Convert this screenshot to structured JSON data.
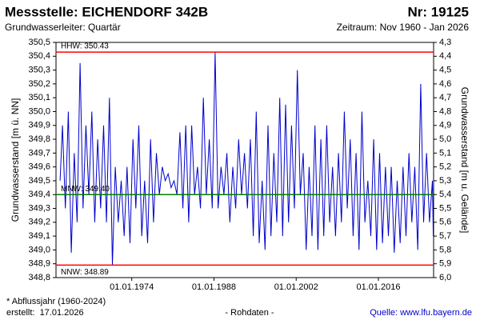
{
  "chart_data": {
    "type": "line",
    "title": "Messstelle: EICHENDORF 342B",
    "number": "Nr: 19125",
    "subtitle": "Grundwasserleiter: Quartär",
    "period": "Zeitraum: Nov 1960 - Jan 2026",
    "y_label": "Grundwasserstand [m ü. NN]",
    "y2_label": "Grundwasserstand [m u. Gelände]",
    "note": "* Abflussjahr (1960-2024)",
    "created": "erstellt:  17.01.2026",
    "data_status": "- Rohdaten -",
    "source": "Quelle: www.lfu.bayern.de",
    "xlim": [
      1961.1,
      2025.4
    ],
    "xticks": [
      {
        "value": 1974,
        "label": "01.01.1974"
      },
      {
        "value": 1988,
        "label": "01.01.1988"
      },
      {
        "value": 2002,
        "label": "01.01.2002"
      },
      {
        "value": 2016,
        "label": "01.01.2016"
      }
    ],
    "ylim": [
      348.8,
      350.5
    ],
    "yticks": [
      {
        "value": 348.8,
        "label": "348,8"
      },
      {
        "value": 348.9,
        "label": "348,9"
      },
      {
        "value": 349.0,
        "label": "349,0"
      },
      {
        "value": 349.1,
        "label": "349,1"
      },
      {
        "value": 349.2,
        "label": "349,2"
      },
      {
        "value": 349.3,
        "label": "349,3"
      },
      {
        "value": 349.4,
        "label": "349,4"
      },
      {
        "value": 349.5,
        "label": "349,5"
      },
      {
        "value": 349.6,
        "label": "349,6"
      },
      {
        "value": 349.7,
        "label": "349,7"
      },
      {
        "value": 349.8,
        "label": "349,8"
      },
      {
        "value": 349.9,
        "label": "349,9"
      },
      {
        "value": 350.0,
        "label": "350,0"
      },
      {
        "value": 350.1,
        "label": "350,1"
      },
      {
        "value": 350.2,
        "label": "350,2"
      },
      {
        "value": 350.3,
        "label": "350,3"
      },
      {
        "value": 350.4,
        "label": "350,4"
      },
      {
        "value": 350.5,
        "label": "350,5"
      }
    ],
    "y2lim": [
      6.0,
      4.3
    ],
    "y2ticks": [
      {
        "value": 6.0,
        "label": "6,0"
      },
      {
        "value": 5.9,
        "label": "5,9"
      },
      {
        "value": 5.8,
        "label": "5,8"
      },
      {
        "value": 5.7,
        "label": "5,7"
      },
      {
        "value": 5.6,
        "label": "5,6"
      },
      {
        "value": 5.5,
        "label": "5,5"
      },
      {
        "value": 5.4,
        "label": "5,4"
      },
      {
        "value": 5.3,
        "label": "5,3"
      },
      {
        "value": 5.2,
        "label": "5,2"
      },
      {
        "value": 5.1,
        "label": "5,1"
      },
      {
        "value": 5.0,
        "label": "5,0"
      },
      {
        "value": 4.9,
        "label": "4,9"
      },
      {
        "value": 4.8,
        "label": "4,8"
      },
      {
        "value": 4.7,
        "label": "4,7"
      },
      {
        "value": 4.6,
        "label": "4,6"
      },
      {
        "value": 4.5,
        "label": "4,5"
      },
      {
        "value": 4.4,
        "label": "4,4"
      },
      {
        "value": 4.3,
        "label": "4,3"
      }
    ],
    "reference_lines": [
      {
        "label": "HHW: 350.43",
        "value": 350.43,
        "color": "#ff0000"
      },
      {
        "label": "MNW: 349.40",
        "value": 349.4,
        "color": "#008000"
      },
      {
        "label": "NNW: 348.89",
        "value": 348.89,
        "color": "#ff0000"
      }
    ],
    "x": [
      1961.8,
      1962.2,
      1962.7,
      1963.2,
      1963.7,
      1964.2,
      1964.7,
      1965.2,
      1965.7,
      1966.2,
      1966.7,
      1967.2,
      1967.7,
      1968.2,
      1968.7,
      1969.2,
      1969.7,
      1970.2,
      1970.7,
      1971.2,
      1971.7,
      1972.2,
      1972.7,
      1973.2,
      1973.7,
      1974.2,
      1974.7,
      1975.2,
      1975.7,
      1976.2,
      1976.7,
      1977.2,
      1977.7,
      1978.2,
      1978.7,
      1979.2,
      1979.7,
      1980.2,
      1980.7,
      1981.2,
      1981.7,
      1982.2,
      1982.7,
      1983.2,
      1983.7,
      1984.2,
      1984.7,
      1985.2,
      1985.7,
      1986.2,
      1986.7,
      1987.2,
      1987.7,
      1988.2,
      1988.7,
      1989.2,
      1989.7,
      1990.2,
      1990.7,
      1991.2,
      1991.7,
      1992.2,
      1992.7,
      1993.2,
      1993.7,
      1994.2,
      1994.7,
      1995.2,
      1995.7,
      1996.2,
      1996.7,
      1997.2,
      1997.7,
      1998.2,
      1998.7,
      1999.2,
      1999.7,
      2000.2,
      2000.7,
      2001.2,
      2001.7,
      2002.2,
      2002.7,
      2003.2,
      2003.7,
      2004.2,
      2004.7,
      2005.2,
      2005.7,
      2006.2,
      2006.7,
      2007.2,
      2007.7,
      2008.2,
      2008.7,
      2009.2,
      2009.7,
      2010.2,
      2010.7,
      2011.2,
      2011.7,
      2012.2,
      2012.7,
      2013.2,
      2013.7,
      2014.2,
      2014.7,
      2015.2,
      2015.7,
      2016.2,
      2016.7,
      2017.2,
      2017.7,
      2018.2,
      2018.7,
      2019.2,
      2019.7,
      2020.2,
      2020.7,
      2021.2,
      2021.7,
      2022.2,
      2022.7,
      2023.2,
      2023.7,
      2024.2,
      2024.7,
      2025.2,
      2025.35
    ],
    "series": [
      {
        "color": "#0000cc",
        "values": [
          349.5,
          349.9,
          349.3,
          350.0,
          348.98,
          349.7,
          349.2,
          350.35,
          349.3,
          349.9,
          349.4,
          350.0,
          349.2,
          349.8,
          349.3,
          349.9,
          349.2,
          350.1,
          348.89,
          349.6,
          349.2,
          349.5,
          349.1,
          349.6,
          349.05,
          349.8,
          349.3,
          349.9,
          349.1,
          349.5,
          349.05,
          349.8,
          349.2,
          349.7,
          349.4,
          349.6,
          349.5,
          349.55,
          349.45,
          349.5,
          349.4,
          349.85,
          349.3,
          349.9,
          349.2,
          349.9,
          349.4,
          349.6,
          349.3,
          350.1,
          349.4,
          349.8,
          349.3,
          350.43,
          349.3,
          349.6,
          349.4,
          349.7,
          349.2,
          349.6,
          349.3,
          349.8,
          349.4,
          349.7,
          349.3,
          349.8,
          349.1,
          350.0,
          349.05,
          349.5,
          349.0,
          349.9,
          349.1,
          349.7,
          349.2,
          350.1,
          349.1,
          350.05,
          349.2,
          349.9,
          349.3,
          350.3,
          349.4,
          349.7,
          349.0,
          349.6,
          349.1,
          349.9,
          349.0,
          349.8,
          349.1,
          349.9,
          349.2,
          349.6,
          349.1,
          349.7,
          349.2,
          350.0,
          349.3,
          349.8,
          349.1,
          349.7,
          349.0,
          350.0,
          349.2,
          349.5,
          349.1,
          349.8,
          349.0,
          349.7,
          349.05,
          349.6,
          349.1,
          349.6,
          348.98,
          349.5,
          349.05,
          349.6,
          349.1,
          349.7,
          349.2,
          349.6,
          349.0,
          350.2,
          349.2,
          349.7,
          349.2,
          349.5,
          349.1
        ]
      }
    ]
  }
}
